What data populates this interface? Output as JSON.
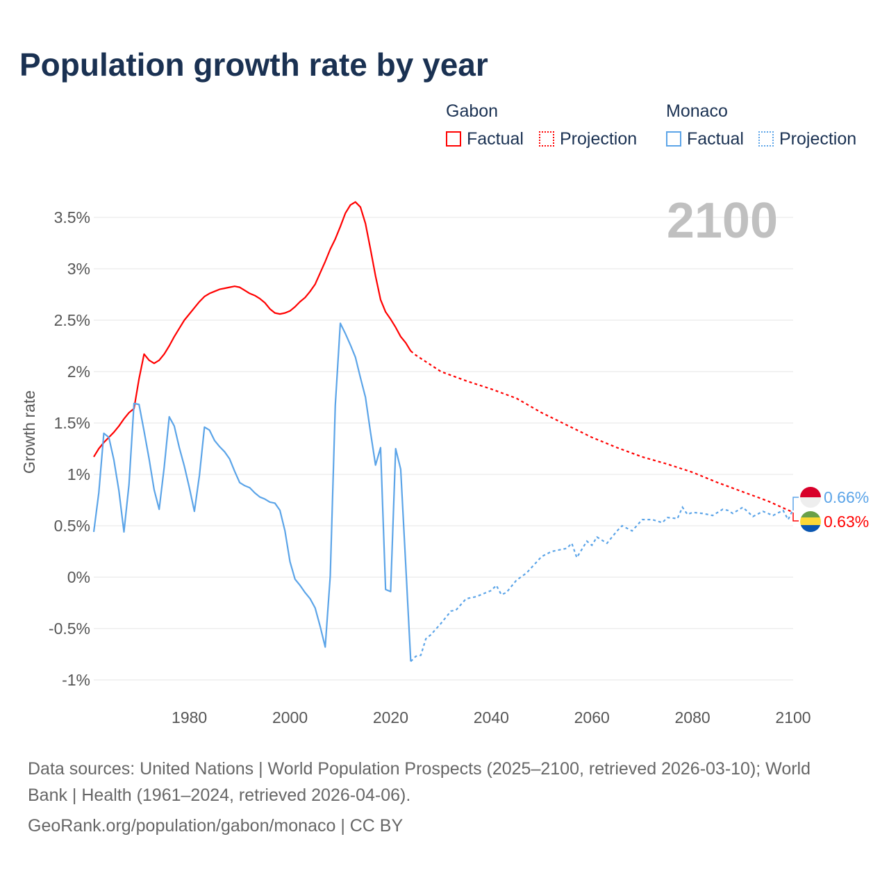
{
  "title": "Population growth rate by year",
  "legend": {
    "groups": [
      {
        "name": "Gabon",
        "factual": "Factual",
        "projection": "Projection",
        "color": "#ff0000"
      },
      {
        "name": "Monaco",
        "factual": "Factual",
        "projection": "Projection",
        "color": "#5ba4e8"
      }
    ]
  },
  "footer": {
    "line1": "Data sources: United Nations | World Population Prospects (2025–2100, retrieved 2026-03-10); World Bank | Health (1961–2024, retrieved 2026-04-06).",
    "line2": "GeoRank.org/population/gabon/monaco | CC BY"
  },
  "chart_data": {
    "type": "line",
    "title": "Population growth rate by year",
    "xlabel": "",
    "ylabel": "Growth rate",
    "year_label": "2100",
    "xlim": [
      1961,
      2100
    ],
    "ylim": [
      -1,
      3.75
    ],
    "xticks": [
      1980,
      2000,
      2020,
      2040,
      2060,
      2080,
      2100
    ],
    "yticks": [
      {
        "v": -1,
        "l": "-1%"
      },
      {
        "v": -0.5,
        "l": "-0.5%"
      },
      {
        "v": 0,
        "l": "0%"
      },
      {
        "v": 0.5,
        "l": "0.5%"
      },
      {
        "v": 1,
        "l": "1%"
      },
      {
        "v": 1.5,
        "l": "1.5%"
      },
      {
        "v": 2,
        "l": "2%"
      },
      {
        "v": 2.5,
        "l": "2.5%"
      },
      {
        "v": 3,
        "l": "3%"
      },
      {
        "v": 3.5,
        "l": "3.5%"
      }
    ],
    "series": [
      {
        "name": "Gabon",
        "color": "#ff0000",
        "end_label": "0.63%",
        "factual": {
          "start": 1961,
          "values": [
            1.17,
            1.25,
            1.31,
            1.36,
            1.41,
            1.47,
            1.54,
            1.6,
            1.64,
            1.93,
            2.17,
            2.11,
            2.08,
            2.11,
            2.17,
            2.25,
            2.34,
            2.42,
            2.5,
            2.56,
            2.62,
            2.68,
            2.73,
            2.76,
            2.78,
            2.8,
            2.81,
            2.82,
            2.83,
            2.82,
            2.79,
            2.76,
            2.74,
            2.71,
            2.67,
            2.61,
            2.57,
            2.56,
            2.57,
            2.59,
            2.63,
            2.68,
            2.72,
            2.78,
            2.85,
            2.96,
            3.07,
            3.19,
            3.29,
            3.41,
            3.54,
            3.62,
            3.65,
            3.6,
            3.44,
            3.19,
            2.93,
            2.7,
            2.58,
            2.51,
            2.43,
            2.34,
            2.28,
            2.2
          ]
        },
        "projection": {
          "x": [
            2024,
            2025,
            2030,
            2035,
            2040,
            2045,
            2050,
            2055,
            2060,
            2065,
            2070,
            2075,
            2080,
            2085,
            2090,
            2095,
            2100
          ],
          "values": [
            2.2,
            2.16,
            2.0,
            1.91,
            1.83,
            1.74,
            1.6,
            1.48,
            1.36,
            1.26,
            1.17,
            1.1,
            1.02,
            0.92,
            0.83,
            0.74,
            0.63
          ]
        }
      },
      {
        "name": "Monaco",
        "color": "#5ba4e8",
        "end_label": "0.66%",
        "factual": {
          "start": 1961,
          "values": [
            0.44,
            0.82,
            1.4,
            1.36,
            1.14,
            0.84,
            0.44,
            0.9,
            1.69,
            1.68,
            1.42,
            1.15,
            0.85,
            0.66,
            1.07,
            1.56,
            1.47,
            1.26,
            1.08,
            0.87,
            0.64,
            0.99,
            1.46,
            1.43,
            1.33,
            1.27,
            1.22,
            1.15,
            1.03,
            0.92,
            0.89,
            0.87,
            0.82,
            0.78,
            0.76,
            0.73,
            0.72,
            0.65,
            0.45,
            0.15,
            -0.02,
            -0.08,
            -0.15,
            -0.21,
            -0.3,
            -0.48,
            -0.68,
            0.01,
            1.67,
            2.47,
            2.37,
            2.26,
            2.14,
            1.94,
            1.75,
            1.41,
            1.09,
            1.26,
            -0.12,
            -0.14,
            1.25,
            1.05,
            0.12,
            -0.82
          ]
        },
        "projection": {
          "x": [
            2024,
            2025,
            2026,
            2027,
            2028,
            2030,
            2032,
            2033,
            2035,
            2037,
            2040,
            2041,
            2042,
            2043,
            2045,
            2047,
            2050,
            2052,
            2055,
            2056,
            2057,
            2059,
            2060,
            2061,
            2063,
            2065,
            2066,
            2068,
            2070,
            2072,
            2074,
            2075,
            2077,
            2078,
            2079,
            2080,
            2082,
            2084,
            2086,
            2087,
            2088,
            2090,
            2092,
            2094,
            2096,
            2098,
            2099,
            2100
          ],
          "values": [
            -0.82,
            -0.77,
            -0.76,
            -0.6,
            -0.56,
            -0.45,
            -0.33,
            -0.32,
            -0.21,
            -0.19,
            -0.13,
            -0.08,
            -0.17,
            -0.15,
            -0.03,
            0.04,
            0.2,
            0.25,
            0.28,
            0.33,
            0.19,
            0.35,
            0.31,
            0.39,
            0.33,
            0.45,
            0.5,
            0.45,
            0.56,
            0.56,
            0.53,
            0.58,
            0.57,
            0.68,
            0.61,
            0.63,
            0.62,
            0.6,
            0.66,
            0.65,
            0.62,
            0.68,
            0.59,
            0.64,
            0.6,
            0.65,
            0.56,
            0.66
          ]
        }
      }
    ]
  }
}
